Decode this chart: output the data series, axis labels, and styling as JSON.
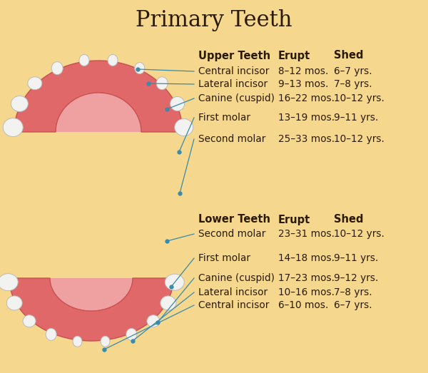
{
  "title": "Primary Teeth",
  "title_fontsize": 22,
  "bg_color": "#F5D78E",
  "text_color": "#2A1A00",
  "arrow_color": "#3A8AAA",
  "upper_header": [
    "Upper Teeth",
    "Erupt",
    "Shed"
  ],
  "upper_rows": [
    [
      "Central incisor",
      "8–12 mos.",
      "6–7 yrs."
    ],
    [
      "Lateral incisor",
      "9–13 mos.",
      "7–8 yrs."
    ],
    [
      "Canine (cuspid)",
      "16–22 mos.",
      "10–12 yrs."
    ],
    [
      "First molar",
      "13–19 mos.",
      "9–11 yrs."
    ],
    [
      "Second molar",
      "25–33 mos.",
      "10–12 yrs."
    ]
  ],
  "lower_header": [
    "Lower Teeth",
    "Erupt",
    "Shed"
  ],
  "lower_rows": [
    [
      "Second molar",
      "23–31 mos.",
      "10–12 yrs."
    ],
    [
      "First molar",
      "14–18 mos.",
      "9–11 yrs."
    ],
    [
      "Canine (cuspid)",
      "17–23 mos.",
      "9–12 yrs."
    ],
    [
      "Lateral incisor",
      "10–16 mos.",
      "7–8 yrs."
    ],
    [
      "Central incisor",
      "6–10 mos.",
      "6–7 yrs."
    ]
  ],
  "gum_color": "#E06868",
  "gum_edge_color": "#C85050",
  "palate_color": "#EFA0A0",
  "tooth_face_color": "#F2F2F0",
  "tooth_edge_color": "#BBBBBB",
  "header_fontsize": 10.5,
  "row_fontsize": 9.8
}
